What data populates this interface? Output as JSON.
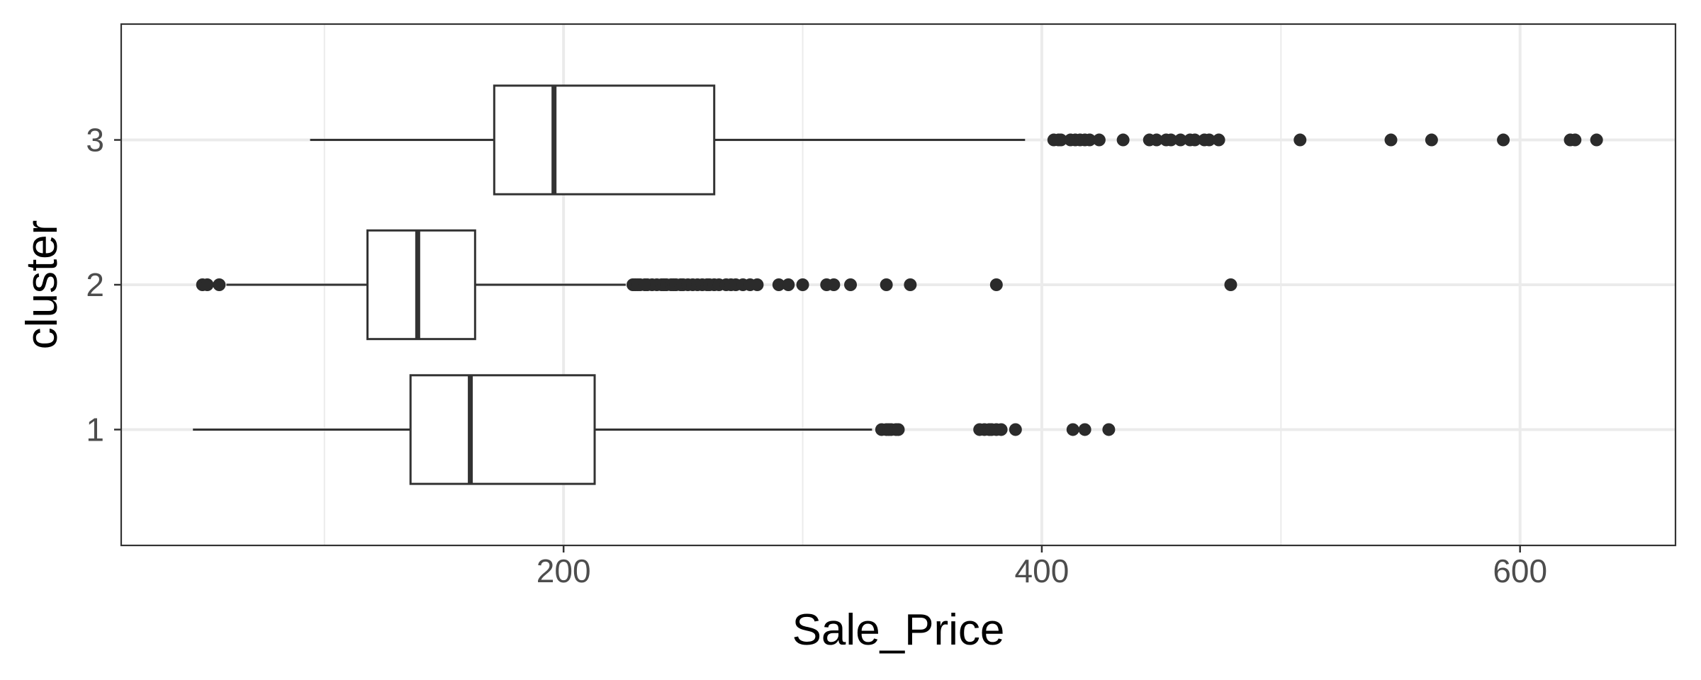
{
  "chart_data": {
    "type": "boxplot",
    "orientation": "horizontal",
    "title": "",
    "xlabel": "Sale_Price",
    "ylabel": "cluster",
    "xlim": [
      15,
      665
    ],
    "x_ticks": [
      200,
      400,
      600
    ],
    "x_tick_labels": [
      "200",
      "400",
      "600"
    ],
    "x_minor_ticks": [
      100,
      300,
      500
    ],
    "y_categories": [
      "1",
      "2",
      "3"
    ],
    "grid": true,
    "legend": "none",
    "colors": {
      "box_stroke": "#333333",
      "outlier": "#2b2b2b",
      "grid": "#ebebeb",
      "panel_border": "#333333"
    },
    "boxes": [
      {
        "category": "1",
        "whisker_low": 45,
        "q1": 136,
        "median": 161,
        "q3": 213,
        "whisker_high": 329,
        "outliers": [
          333,
          335,
          336,
          337,
          339,
          340,
          374,
          376,
          378,
          379,
          381,
          383,
          389,
          413,
          418,
          428
        ]
      },
      {
        "category": "2",
        "whisker_low": 59,
        "q1": 118,
        "median": 139,
        "q3": 163,
        "whisker_high": 226,
        "outliers": [
          49,
          51,
          56,
          229,
          230,
          231,
          232,
          234,
          235,
          237,
          239,
          241,
          242,
          243,
          245,
          246,
          247,
          249,
          250,
          252,
          254,
          256,
          258,
          260,
          261,
          263,
          265,
          268,
          270,
          272,
          275,
          278,
          281,
          290,
          294,
          300,
          310,
          313,
          320,
          335,
          345,
          381,
          479
        ]
      },
      {
        "category": "3",
        "whisker_low": 94,
        "q1": 171,
        "median": 196,
        "q3": 263,
        "whisker_high": 393,
        "outliers": [
          405,
          407,
          408,
          412,
          414,
          416,
          418,
          420,
          424,
          434,
          445,
          448,
          452,
          454,
          458,
          462,
          464,
          468,
          470,
          474,
          508,
          546,
          563,
          593,
          621,
          623,
          632
        ]
      }
    ]
  }
}
